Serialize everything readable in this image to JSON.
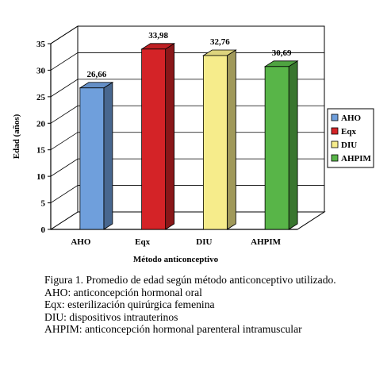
{
  "chart_data": {
    "type": "bar",
    "categories": [
      "AHO",
      "Eqx",
      "DIU",
      "AHPIM"
    ],
    "series": [
      {
        "name": "AHO",
        "value": 26.66,
        "label": "26,66",
        "color": "#6f9fdc"
      },
      {
        "name": "Eqx",
        "value": 33.98,
        "label": "33,98",
        "color": "#d42327"
      },
      {
        "name": "DIU",
        "value": 32.76,
        "label": "32,76",
        "color": "#f6ec8b"
      },
      {
        "name": "AHPIM",
        "value": 30.69,
        "label": "30,69",
        "color": "#58b548"
      }
    ],
    "xlabel": "Método anticonceptivo",
    "ylabel": "Edad (años)",
    "ylim": [
      0,
      35
    ],
    "yticks": [
      0,
      5,
      10,
      15,
      20,
      25,
      30,
      35
    ],
    "grid": true,
    "three_d": true,
    "legend_position": "right"
  },
  "caption": {
    "title": "Figura 1. Promedio de edad según método anticonceptivo utilizado.",
    "lines": [
      "AHO: anticoncepción hormonal oral",
      "Eqx: esterilización quirúrgica femenina",
      "DIU: dispositivos intrauterinos",
      "AHPIM: anticoncepción hormonal parenteral intramuscular"
    ]
  }
}
